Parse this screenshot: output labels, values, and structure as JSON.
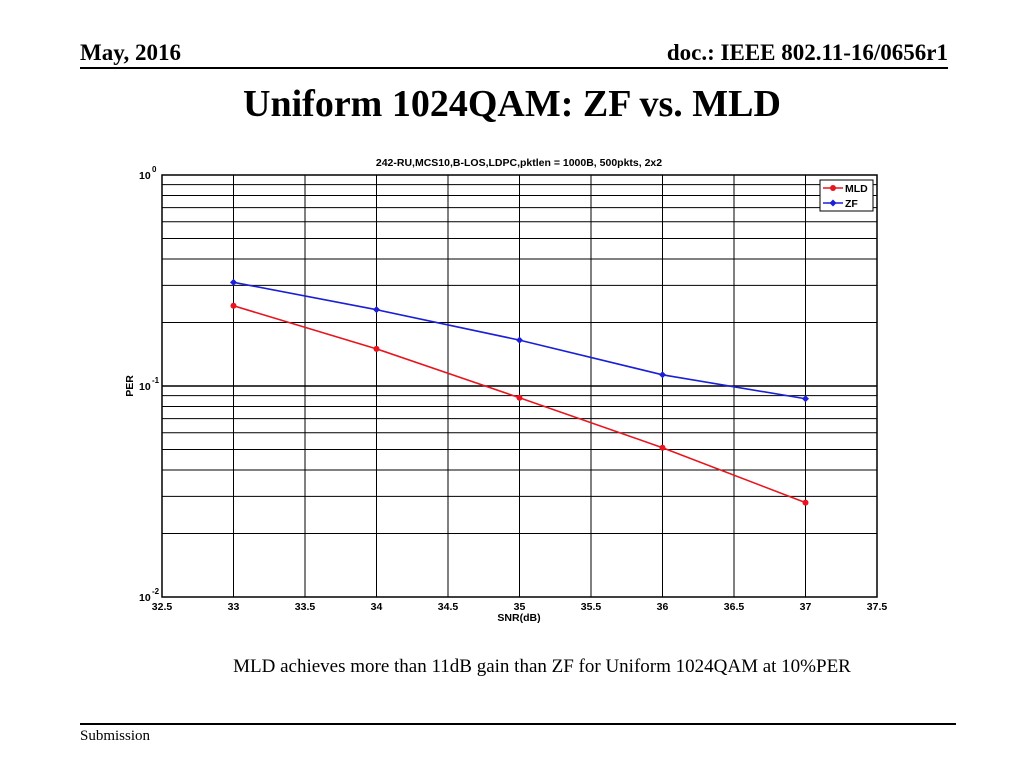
{
  "header": {
    "date": "May, 2016",
    "doc": "doc.: IEEE 802.11-16/0656r1"
  },
  "slide": {
    "title": "Uniform 1024QAM: ZF vs. MLD",
    "caption": "MLD achieves more than 11dB gain than ZF for Uniform 1024QAM at 10%PER",
    "footer": "Submission"
  },
  "chart_data": {
    "type": "line",
    "title": "242-RU,MCS10,B-LOS,LDPC,pktlen = 1000B, 500pkts, 2x2",
    "xlabel": "SNR(dB)",
    "ylabel": "PER",
    "xscale": "linear",
    "yscale": "log",
    "xlim": [
      32.5,
      37.5
    ],
    "ylim": [
      0.01,
      1
    ],
    "xticks": [
      "32.5",
      "33",
      "33.5",
      "34",
      "34.5",
      "35",
      "35.5",
      "36",
      "36.5",
      "37",
      "37.5"
    ],
    "yticks": [
      {
        "base": "10",
        "exp": "0"
      },
      {
        "base": "10",
        "exp": "-1"
      },
      {
        "base": "10",
        "exp": "-2"
      }
    ],
    "grid": true,
    "legend_position": "top-right",
    "x": [
      33,
      34,
      35,
      36,
      37
    ],
    "series": [
      {
        "name": "MLD",
        "color": "#e8141e",
        "marker": "circle",
        "values": [
          0.24,
          0.15,
          0.088,
          0.051,
          0.028
        ]
      },
      {
        "name": "ZF",
        "color": "#1b1fd6",
        "marker": "diamond",
        "values": [
          0.31,
          0.23,
          0.165,
          0.113,
          0.087
        ]
      }
    ]
  }
}
